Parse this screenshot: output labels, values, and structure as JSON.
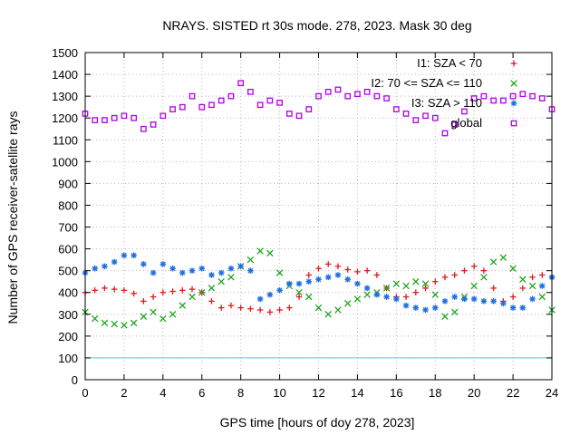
{
  "chart_data": {
    "type": "scatter",
    "title": "NRAYS. SISTED rt 30s mode. 278, 2023. Mask 30 deg",
    "xlabel": "GPS time [hours of doy 278, 2023]",
    "ylabel": "Number of GPS receiver-satellite rays",
    "xlim": [
      0,
      24
    ],
    "ylim": [
      0,
      1500
    ],
    "xticks": [
      0,
      2,
      4,
      6,
      8,
      10,
      12,
      14,
      16,
      18,
      20,
      22,
      24
    ],
    "yticks": [
      0,
      100,
      200,
      300,
      400,
      500,
      600,
      700,
      800,
      900,
      1000,
      1100,
      1200,
      1300,
      1400,
      1500
    ],
    "grid": true,
    "legend_position": "top-right",
    "reference_line": {
      "name": "threshold",
      "y": 100,
      "color": "#40d8e0"
    },
    "series": [
      {
        "name": "I1: SZA < 70",
        "marker": "plus",
        "color": "#e41a1c",
        "x": [
          0,
          0.5,
          1,
          1.5,
          2,
          2.5,
          3,
          3.5,
          4,
          4.5,
          5,
          5.5,
          6,
          6.5,
          7,
          7.5,
          8,
          8.5,
          9,
          9.5,
          10,
          10.5,
          11,
          11.5,
          12,
          12.5,
          13,
          13.5,
          14,
          14.5,
          15,
          15.5,
          16,
          16.5,
          17,
          17.5,
          18,
          18.5,
          19,
          19.5,
          20,
          20.5,
          21,
          21.5,
          22,
          22.5,
          23,
          23.5,
          24
        ],
        "values": [
          400,
          410,
          420,
          415,
          410,
          395,
          360,
          380,
          400,
          405,
          410,
          415,
          400,
          360,
          330,
          340,
          330,
          325,
          320,
          310,
          320,
          330,
          380,
          480,
          510,
          530,
          520,
          505,
          495,
          500,
          480,
          420,
          380,
          380,
          400,
          420,
          450,
          470,
          480,
          500,
          520,
          500,
          420,
          360,
          380,
          420,
          470,
          480,
          470
        ]
      },
      {
        "name": "I2: 70 <= SZA <= 110",
        "marker": "cross",
        "color": "#1ea51e",
        "x": [
          0,
          0.5,
          1,
          1.5,
          2,
          2.5,
          3,
          3.5,
          4,
          4.5,
          5,
          5.5,
          6,
          6.5,
          7,
          7.5,
          8,
          8.5,
          9,
          9.5,
          10,
          10.5,
          11,
          11.5,
          12,
          12.5,
          13,
          13.5,
          14,
          14.5,
          15,
          15.5,
          16,
          16.5,
          17,
          17.5,
          18,
          18.5,
          19,
          19.5,
          20,
          20.5,
          21,
          21.5,
          22,
          22.5,
          23,
          23.5,
          24
        ],
        "values": [
          310,
          280,
          260,
          255,
          250,
          260,
          290,
          310,
          280,
          300,
          340,
          380,
          400,
          420,
          450,
          470,
          520,
          550,
          590,
          580,
          490,
          430,
          400,
          380,
          330,
          300,
          320,
          350,
          370,
          390,
          400,
          420,
          440,
          430,
          450,
          440,
          390,
          290,
          310,
          380,
          430,
          470,
          540,
          560,
          510,
          460,
          430,
          380,
          320
        ]
      },
      {
        "name": "I3: SZA > 110",
        "marker": "star",
        "color": "#1e6ee0",
        "x": [
          0,
          0.5,
          1,
          1.5,
          2,
          2.5,
          3,
          3.5,
          4,
          4.5,
          5,
          5.5,
          6,
          6.5,
          7,
          7.5,
          8,
          8.5,
          9,
          9.5,
          10,
          10.5,
          11,
          11.5,
          12,
          12.5,
          13,
          13.5,
          14,
          14.5,
          15,
          15.5,
          16,
          16.5,
          17,
          17.5,
          18,
          18.5,
          19,
          19.5,
          20,
          20.5,
          21,
          21.5,
          22,
          22.5,
          23,
          23.5,
          24
        ],
        "values": [
          490,
          510,
          520,
          540,
          570,
          570,
          530,
          490,
          530,
          510,
          490,
          500,
          510,
          480,
          490,
          510,
          520,
          500,
          370,
          390,
          410,
          440,
          440,
          450,
          460,
          470,
          480,
          460,
          440,
          420,
          390,
          380,
          370,
          340,
          330,
          320,
          330,
          360,
          380,
          370,
          370,
          360,
          360,
          350,
          330,
          330,
          370,
          430,
          470
        ]
      },
      {
        "name": "global",
        "marker": "square",
        "color": "#b000e8",
        "x": [
          0,
          0.5,
          1,
          1.5,
          2,
          2.5,
          3,
          3.5,
          4,
          4.5,
          5,
          5.5,
          6,
          6.5,
          7,
          7.5,
          8,
          8.5,
          9,
          9.5,
          10,
          10.5,
          11,
          11.5,
          12,
          12.5,
          13,
          13.5,
          14,
          14.5,
          15,
          15.5,
          16,
          16.5,
          17,
          17.5,
          18,
          18.5,
          19,
          19.5,
          20,
          20.5,
          21,
          21.5,
          22,
          22.5,
          23,
          23.5,
          24
        ],
        "values": [
          1220,
          1190,
          1190,
          1200,
          1210,
          1200,
          1150,
          1170,
          1210,
          1240,
          1250,
          1300,
          1250,
          1260,
          1280,
          1300,
          1360,
          1320,
          1260,
          1280,
          1270,
          1220,
          1210,
          1240,
          1300,
          1320,
          1330,
          1300,
          1310,
          1320,
          1300,
          1290,
          1240,
          1220,
          1190,
          1210,
          1200,
          1130,
          1170,
          1230,
          1290,
          1300,
          1280,
          1280,
          1300,
          1310,
          1300,
          1290,
          1240
        ]
      }
    ]
  }
}
